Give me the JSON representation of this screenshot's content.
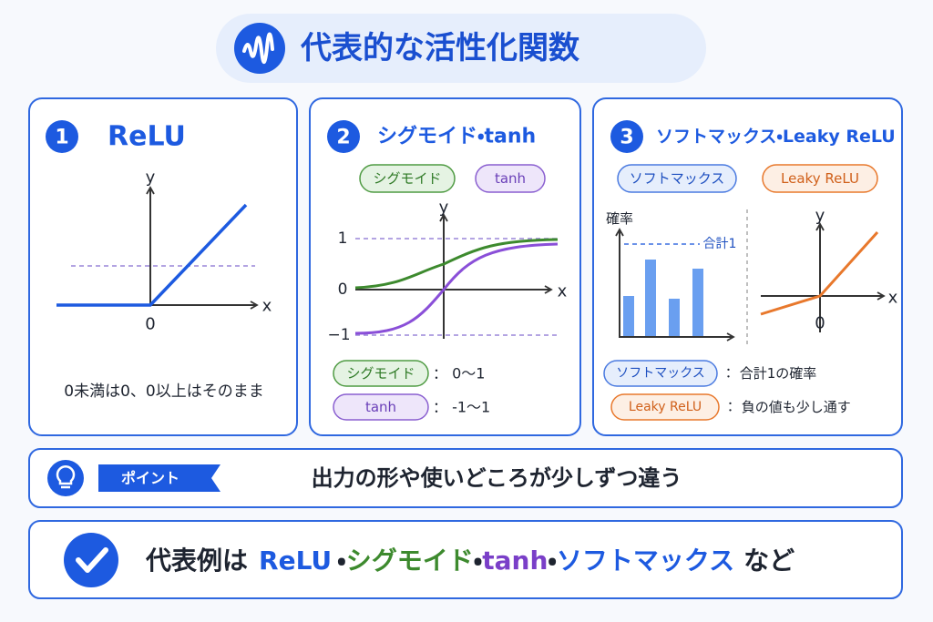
{
  "header": {
    "title": "代表的な活性化関数"
  },
  "panels": [
    {
      "number": "1",
      "title": "ReLU",
      "chart": {
        "y_label": "y",
        "x_label": "x",
        "origin": "0"
      },
      "caption": "0未満は0、0以上はそのまま"
    },
    {
      "number": "2",
      "title": "シグモイド・tanh",
      "tags": [
        "シグモイド",
        "tanh"
      ],
      "chart": {
        "y_label": "y",
        "x_label": "x",
        "ticks": [
          "1",
          "0",
          "−1"
        ]
      },
      "legend": [
        {
          "tag": "シグモイド",
          "text": "： 0〜1"
        },
        {
          "tag": "tanh",
          "text": "： -1〜1"
        }
      ]
    },
    {
      "number": "3",
      "title": "ソフトマックス・Leaky ReLU",
      "tags": [
        "ソフトマックス",
        "Leaky ReLU"
      ],
      "softmax_chart": {
        "y_label": "確率",
        "sum_label": "合計1"
      },
      "leaky_chart": {
        "y_label": "y",
        "x_label": "x",
        "origin": "0"
      },
      "legend": [
        {
          "tag": "ソフトマックス",
          "text": "： 合計1の確率"
        },
        {
          "tag": "Leaky ReLU",
          "text": "： 負の値も少し通す"
        }
      ]
    }
  ],
  "point": {
    "badge": "ポイント",
    "text": "出力の形や使いどころが少しずつ違う"
  },
  "summary": {
    "lead": "代表例は",
    "items": [
      "ReLU",
      "シグモイド",
      "tanh",
      "ソフトマックス"
    ],
    "separators": [
      "・",
      "・",
      "・"
    ],
    "tail": "など"
  }
}
